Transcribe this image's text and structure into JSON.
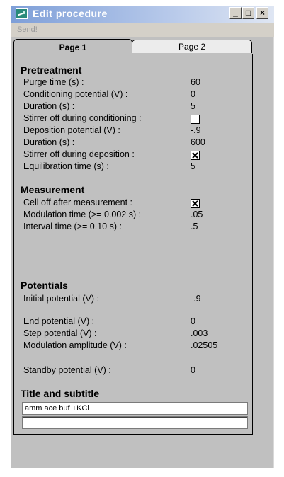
{
  "window": {
    "title": "Edit procedure",
    "minimize": "_",
    "maximize": "□",
    "close": "×"
  },
  "menu": {
    "send": "Send!"
  },
  "tabs": [
    {
      "label": "Page 1",
      "selected": true
    },
    {
      "label": "Page 2",
      "selected": false
    }
  ],
  "pretreatment": {
    "heading": "Pretreatment",
    "purge_time_label": "Purge time (s) :",
    "purge_time": "60",
    "conditioning_potential_label": "Conditioning potential (V) :",
    "conditioning_potential": "0",
    "duration1_label": "Duration (s) :",
    "duration1": "5",
    "stirrer_off_conditioning_label": "Stirrer off during conditioning :",
    "stirrer_off_conditioning": false,
    "deposition_potential_label": "Deposition potential (V) :",
    "deposition_potential": "-.9",
    "duration2_label": "Duration (s) :",
    "duration2": "600",
    "stirrer_off_deposition_label": "Stirrer off during deposition :",
    "stirrer_off_deposition": true,
    "equilibration_time_label": "Equilibration time (s) :",
    "equilibration_time": "5"
  },
  "measurement": {
    "heading": "Measurement",
    "cell_off_label": "Cell off after measurement :",
    "cell_off": true,
    "modulation_time_label": "Modulation time (>= 0.002 s) :",
    "modulation_time": ".05",
    "interval_time_label": "Interval time (>= 0.10 s) :",
    "interval_time": ".5"
  },
  "potentials": {
    "heading": "Potentials",
    "initial_label": "Initial potential (V) :",
    "initial": "-.9",
    "end_label": "End potential (V) :",
    "end": "0",
    "step_label": "Step potential (V) :",
    "step": ".003",
    "modulation_amplitude_label": "Modulation amplitude (V) :",
    "modulation_amplitude": ".02505",
    "standby_label": "Standby potential (V) :",
    "standby": "0"
  },
  "title_section": {
    "heading": "Title and subtitle",
    "title_value": "amm ace buf +KCl",
    "subtitle_value": ""
  }
}
